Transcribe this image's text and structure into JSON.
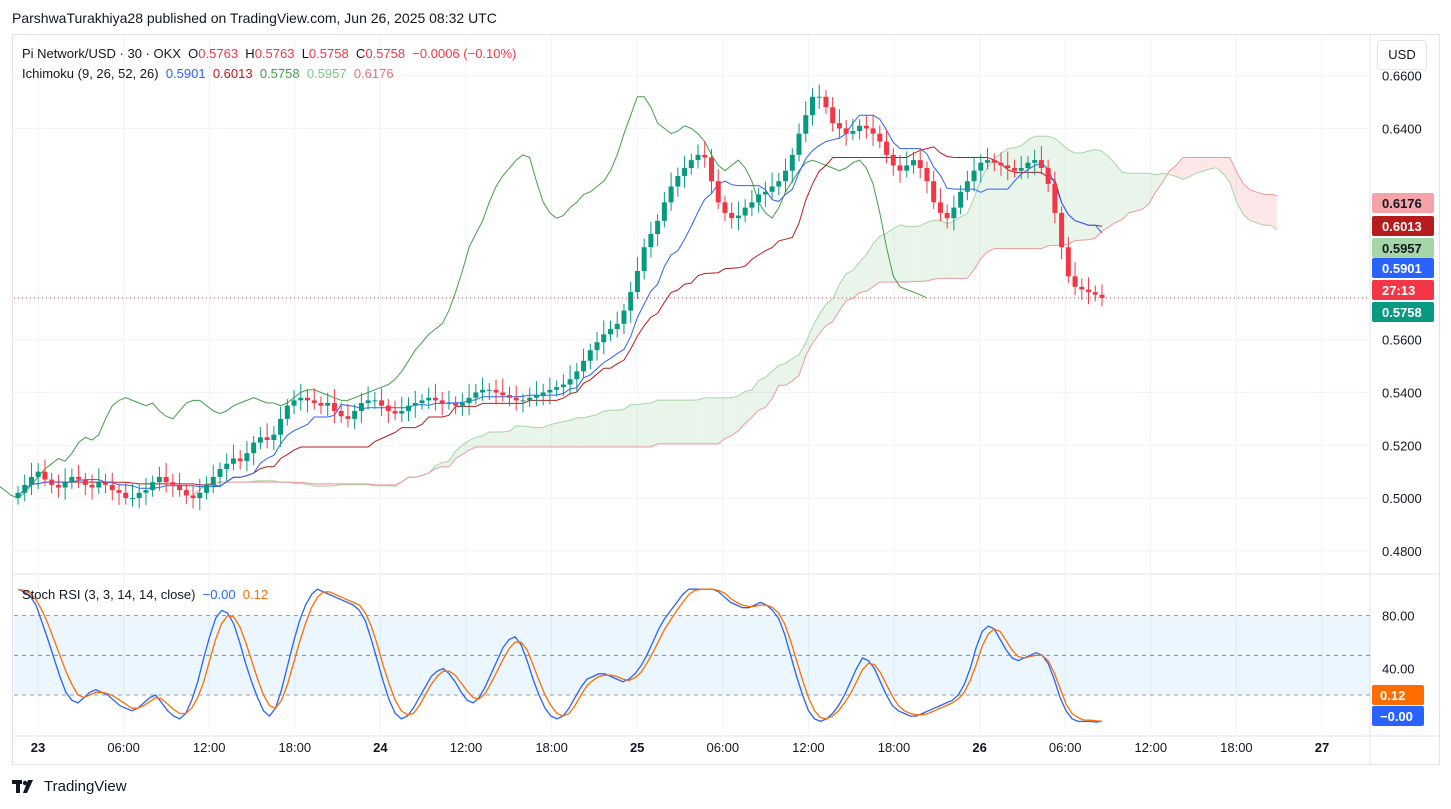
{
  "header": {
    "publisher_line": "ParshwaTurakhiya28 published on TradingView.com, Jun 26, 2025 08:32 UTC"
  },
  "legend": {
    "symbol": "Pi Network/USD · 30 · OKX",
    "o_label": "O",
    "o_value": "0.5763",
    "h_label": "H",
    "h_value": "0.5763",
    "l_label": "L",
    "l_value": "0.5758",
    "c_label": "C",
    "c_value": "0.5758",
    "change": "−0.0006 (−0.10%)",
    "ichimoku_label": "Ichimoku (9, 26, 52, 26)",
    "ichimoku_values": [
      "0.5901",
      "0.6013",
      "0.5758",
      "0.5957",
      "0.6176"
    ],
    "stoch_label": "Stoch RSI (3, 3, 14, 14, close)",
    "stoch_k": "−0.00",
    "stoch_d": "0.12"
  },
  "currency_button": "USD",
  "brand": "TradingView",
  "colors": {
    "up": "#089981",
    "down": "#f23645",
    "conversion": "#2962ff",
    "base": "#b71c1c",
    "lagging": "#43a047",
    "span_a": "#a5d6a7",
    "span_b": "#ef9a9a",
    "stoch_k": "#2962ff",
    "stoch_d": "#ff6d00"
  },
  "chart_data": [
    {
      "type": "candlestick",
      "title": "Pi Network/USD · 30 · OKX",
      "ylim": [
        0.472,
        0.675
      ],
      "y_ticks": [
        "0.4800",
        "0.5000",
        "0.5200",
        "0.5400",
        "0.5600",
        "0.6400",
        "0.6600"
      ],
      "x_ticks": [
        "23",
        "06:00",
        "12:00",
        "18:00",
        "24",
        "12:00",
        "18:00",
        "25",
        "06:00",
        "12:00",
        "18:00",
        "26",
        "06:00",
        "12:00",
        "18:00",
        "27"
      ],
      "price_labels": [
        {
          "value": "0.6176",
          "color": "#f5a3a8",
          "text_color": "#131722"
        },
        {
          "value": "0.6013",
          "color": "#b71c1c",
          "text_color": "#ffffff"
        },
        {
          "value": "0.5957",
          "color": "#a5d6a7",
          "text_color": "#131722"
        },
        {
          "value": "0.5901",
          "color": "#2962ff",
          "text_color": "#ffffff"
        },
        {
          "value": "27:13",
          "color": "#f23645",
          "text_color": "#ffffff"
        },
        {
          "value": "0.5758",
          "color": "#089981",
          "text_color": "#ffffff"
        }
      ],
      "close": [
        0.502,
        0.505,
        0.508,
        0.51,
        0.507,
        0.505,
        0.504,
        0.506,
        0.508,
        0.507,
        0.505,
        0.504,
        0.506,
        0.505,
        0.503,
        0.502,
        0.5,
        0.5,
        0.502,
        0.503,
        0.506,
        0.508,
        0.506,
        0.505,
        0.503,
        0.501,
        0.5,
        0.502,
        0.505,
        0.508,
        0.511,
        0.513,
        0.515,
        0.514,
        0.517,
        0.521,
        0.523,
        0.522,
        0.524,
        0.53,
        0.535,
        0.537,
        0.538,
        0.537,
        0.536,
        0.535,
        0.536,
        0.533,
        0.531,
        0.53,
        0.533,
        0.536,
        0.537,
        0.537,
        0.535,
        0.533,
        0.532,
        0.533,
        0.535,
        0.536,
        0.537,
        0.538,
        0.537,
        0.536,
        0.536,
        0.535,
        0.536,
        0.538,
        0.54,
        0.541,
        0.541,
        0.54,
        0.539,
        0.538,
        0.537,
        0.537,
        0.538,
        0.539,
        0.54,
        0.541,
        0.542,
        0.543,
        0.545,
        0.548,
        0.552,
        0.556,
        0.559,
        0.562,
        0.564,
        0.566,
        0.571,
        0.578,
        0.586,
        0.595,
        0.6,
        0.605,
        0.612,
        0.618,
        0.622,
        0.625,
        0.628,
        0.63,
        0.629,
        0.62,
        0.612,
        0.608,
        0.606,
        0.607,
        0.61,
        0.612,
        0.615,
        0.616,
        0.618,
        0.62,
        0.624,
        0.63,
        0.638,
        0.645,
        0.652,
        0.652,
        0.648,
        0.642,
        0.64,
        0.638,
        0.639,
        0.641,
        0.64,
        0.638,
        0.635,
        0.63,
        0.626,
        0.624,
        0.626,
        0.628,
        0.625,
        0.62,
        0.612,
        0.608,
        0.606,
        0.61,
        0.616,
        0.62,
        0.624,
        0.627,
        0.628,
        0.627,
        0.626,
        0.625,
        0.624,
        0.625,
        0.627,
        0.628,
        0.625,
        0.619,
        0.608,
        0.595,
        0.584,
        0.58,
        0.579,
        0.578,
        0.577,
        0.5758
      ],
      "series": [
        {
          "name": "conversion",
          "values": [
            0.5901
          ]
        },
        {
          "name": "base",
          "values": [
            0.6013
          ]
        },
        {
          "name": "lagging",
          "values": [
            0.5758
          ]
        },
        {
          "name": "span_a",
          "values": [
            0.5957
          ]
        },
        {
          "name": "span_b",
          "values": [
            0.6176
          ]
        }
      ]
    },
    {
      "type": "line",
      "title": "Stoch RSI (3, 3, 14, 14, close)",
      "ylim": [
        -8,
        110
      ],
      "y_ticks": [
        "40.00",
        "80.00"
      ],
      "bands": [
        20,
        50,
        80
      ],
      "current_labels": [
        {
          "value": "0.12",
          "color": "#ff6d00"
        },
        {
          "value": "−0.00",
          "color": "#2962ff"
        }
      ],
      "series": [
        {
          "name": "K",
          "values": [
            100,
            98,
            95,
            88,
            75,
            62,
            48,
            34,
            22,
            16,
            14,
            18,
            22,
            24,
            22,
            20,
            16,
            12,
            10,
            8,
            10,
            14,
            18,
            20,
            14,
            8,
            4,
            2,
            6,
            16,
            30,
            48,
            64,
            78,
            84,
            82,
            74,
            60,
            44,
            30,
            18,
            8,
            4,
            10,
            24,
            42,
            60,
            76,
            88,
            96,
            100,
            98,
            96,
            94,
            92,
            90,
            88,
            84,
            76,
            62,
            46,
            30,
            16,
            6,
            2,
            4,
            10,
            18,
            26,
            34,
            38,
            40,
            36,
            30,
            22,
            16,
            14,
            18,
            26,
            36,
            46,
            56,
            62,
            64,
            58,
            46,
            32,
            20,
            10,
            4,
            2,
            4,
            10,
            18,
            26,
            32,
            34,
            36,
            36,
            34,
            32,
            30,
            32,
            36,
            42,
            50,
            60,
            70,
            78,
            84,
            90,
            96,
            100,
            100,
            100,
            100,
            100,
            98,
            94,
            90,
            88,
            86,
            86,
            88,
            90,
            88,
            84,
            78,
            66,
            50,
            34,
            20,
            8,
            2,
            0,
            2,
            6,
            12,
            20,
            30,
            40,
            48,
            46,
            40,
            30,
            20,
            12,
            8,
            6,
            4,
            4,
            6,
            8,
            10,
            12,
            14,
            16,
            20,
            28,
            40,
            56,
            68,
            72,
            70,
            62,
            54,
            48,
            46,
            48,
            50,
            52,
            50,
            44,
            32,
            18,
            8,
            2,
            0,
            0,
            0,
            -0.5,
            0
          ],
          "stroke_note": "K line"
        },
        {
          "name": "D",
          "values": [
            100,
            99,
            97,
            92,
            84,
            74,
            62,
            50,
            38,
            28,
            20,
            18,
            20,
            22,
            22,
            21,
            19,
            16,
            13,
            10,
            10,
            12,
            15,
            18,
            17,
            13,
            9,
            6,
            6,
            10,
            18,
            30,
            46,
            62,
            74,
            80,
            79,
            72,
            60,
            46,
            32,
            20,
            12,
            10,
            16,
            28,
            44,
            60,
            74,
            86,
            94,
            98,
            98,
            96,
            94,
            92,
            90,
            88,
            82,
            72,
            58,
            42,
            28,
            16,
            8,
            5,
            6,
            12,
            20,
            28,
            34,
            38,
            38,
            35,
            29,
            23,
            18,
            17,
            21,
            29,
            38,
            47,
            55,
            60,
            60,
            54,
            43,
            31,
            20,
            12,
            6,
            4,
            6,
            12,
            20,
            27,
            31,
            34,
            35,
            35,
            34,
            32,
            31,
            33,
            37,
            44,
            52,
            61,
            70,
            77,
            84,
            90,
            96,
            99,
            100,
            100,
            100,
            99,
            97,
            93,
            90,
            88,
            87,
            87,
            88,
            88,
            86,
            82,
            74,
            61,
            46,
            31,
            18,
            8,
            3,
            2,
            4,
            8,
            14,
            21,
            30,
            39,
            44,
            43,
            37,
            28,
            19,
            12,
            8,
            6,
            5,
            5,
            6,
            8,
            10,
            12,
            14,
            17,
            22,
            31,
            43,
            57,
            66,
            70,
            68,
            61,
            54,
            49,
            48,
            49,
            50,
            50,
            46,
            37,
            25,
            13,
            6,
            3,
            1,
            1,
            0.5,
            0.12
          ]
        }
      ]
    }
  ]
}
